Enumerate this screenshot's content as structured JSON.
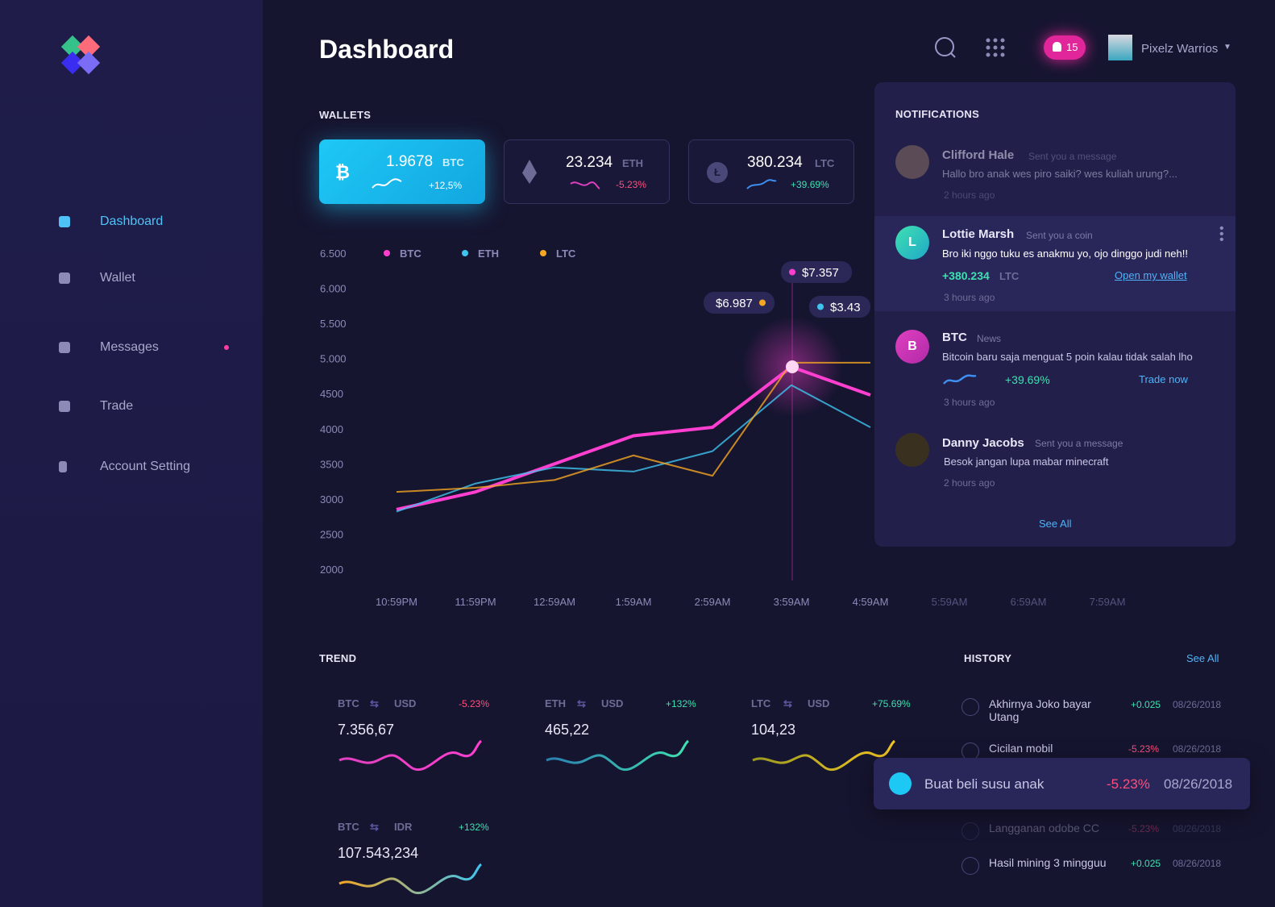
{
  "sidebar": {
    "nav": [
      "Dashboard",
      "Wallet",
      "Messages",
      "Trade",
      "Account Setting"
    ]
  },
  "header": {
    "title": "Dashboard",
    "badge": "15",
    "user": "Pixelz Warrios"
  },
  "wallets": {
    "title": "WALLETS",
    "cards": [
      {
        "amount": "1.9678",
        "currency": "BTC",
        "change": "+12,5%"
      },
      {
        "amount": "23.234",
        "currency": "ETH",
        "change": "-5.23%"
      },
      {
        "amount": "380.234",
        "currency": "LTC",
        "change": "+39.69%"
      }
    ]
  },
  "chart_data": {
    "type": "line",
    "categories": [
      "10:59PM",
      "11:59PM",
      "12:59AM",
      "1:59AM",
      "2:59AM",
      "3:59AM",
      "4:59AM",
      "5:59AM",
      "6:59AM",
      "7:59AM"
    ],
    "series": [
      {
        "name": "BTC",
        "color": "#ff3fd0",
        "values": [
          2850,
          3100,
          3500,
          3900,
          4020,
          4880,
          4480,
          null,
          null,
          null
        ]
      },
      {
        "name": "ETH",
        "color": "#3fc4f0",
        "values": [
          2820,
          3220,
          3450,
          3390,
          3680,
          4620,
          4020,
          null,
          null,
          null
        ]
      },
      {
        "name": "LTC",
        "color": "#f5a623",
        "values": [
          3100,
          3160,
          3270,
          3620,
          3330,
          4940,
          4940,
          null,
          null,
          null
        ]
      }
    ],
    "ylim": [
      2000,
      6500
    ],
    "yticks": [
      2000,
      2500,
      3000,
      3500,
      4000,
      4500,
      {
        "value": 5000,
        "label": "5.000"
      },
      {
        "value": 5500,
        "label": "5.500"
      },
      {
        "value": 6000,
        "label": "6.000"
      },
      {
        "value": 6500,
        "label": "6.500"
      }
    ],
    "annotations": [
      "$7.357",
      "$6.987",
      "$3.43"
    ]
  },
  "notifications": {
    "title": "NOTIFICATIONS",
    "see_all": "See All",
    "items": [
      {
        "name": "Clifford Hale",
        "action": "Sent you a message",
        "message": "Hallo bro anak wes piro saiki? wes kuliah urung?...",
        "time": "2 hours ago"
      },
      {
        "initial": "L",
        "name": "Lottie Marsh",
        "action": "Sent you a coin",
        "message": "Bro iki nggo tuku es anakmu yo, ojo dinggo judi neh!!",
        "amount": "+380.234",
        "currency": "LTC",
        "link": "Open my wallet",
        "time": "3 hours ago"
      },
      {
        "initial": "B",
        "name": "BTC",
        "action": "News",
        "message": "Bitcoin baru saja menguat 5 poin kalau tidak salah lho",
        "change": "+39.69%",
        "link": "Trade now",
        "time": "3 hours ago"
      },
      {
        "name": "Danny Jacobs",
        "action": "Sent you a message",
        "message": "Besok jangan lupa mabar minecraft",
        "time": "2 hours ago"
      }
    ]
  },
  "trend": {
    "title": "TREND",
    "items": [
      {
        "base": "BTC",
        "quote": "USD",
        "change": "-5.23%",
        "value": "7.356,67"
      },
      {
        "base": "ETH",
        "quote": "USD",
        "change": "+132%",
        "value": "465,22"
      },
      {
        "base": "LTC",
        "quote": "USD",
        "change": "+75.69%",
        "value": "104,23"
      },
      {
        "base": "BTC",
        "quote": "IDR",
        "change": "+132%",
        "value": "107.543,234"
      }
    ]
  },
  "history": {
    "title": "HISTORY",
    "see_all": "See All",
    "items": [
      {
        "label": "Akhirnya Joko bayar Utang",
        "amount": "+0.025",
        "date": "08/26/2018"
      },
      {
        "label": "Cicilan mobil",
        "amount": "-5.23%",
        "date": "08/26/2018"
      },
      {
        "label": "Buat beli susu anak",
        "amount": "-5.23%",
        "date": "08/26/2018"
      },
      {
        "label": "Langganan odobe CC",
        "amount": "-5.23%",
        "date": "08/26/2018"
      },
      {
        "label": "Hasil mining 3 mingguu",
        "amount": "+0.025",
        "date": "08/26/2018"
      }
    ]
  }
}
